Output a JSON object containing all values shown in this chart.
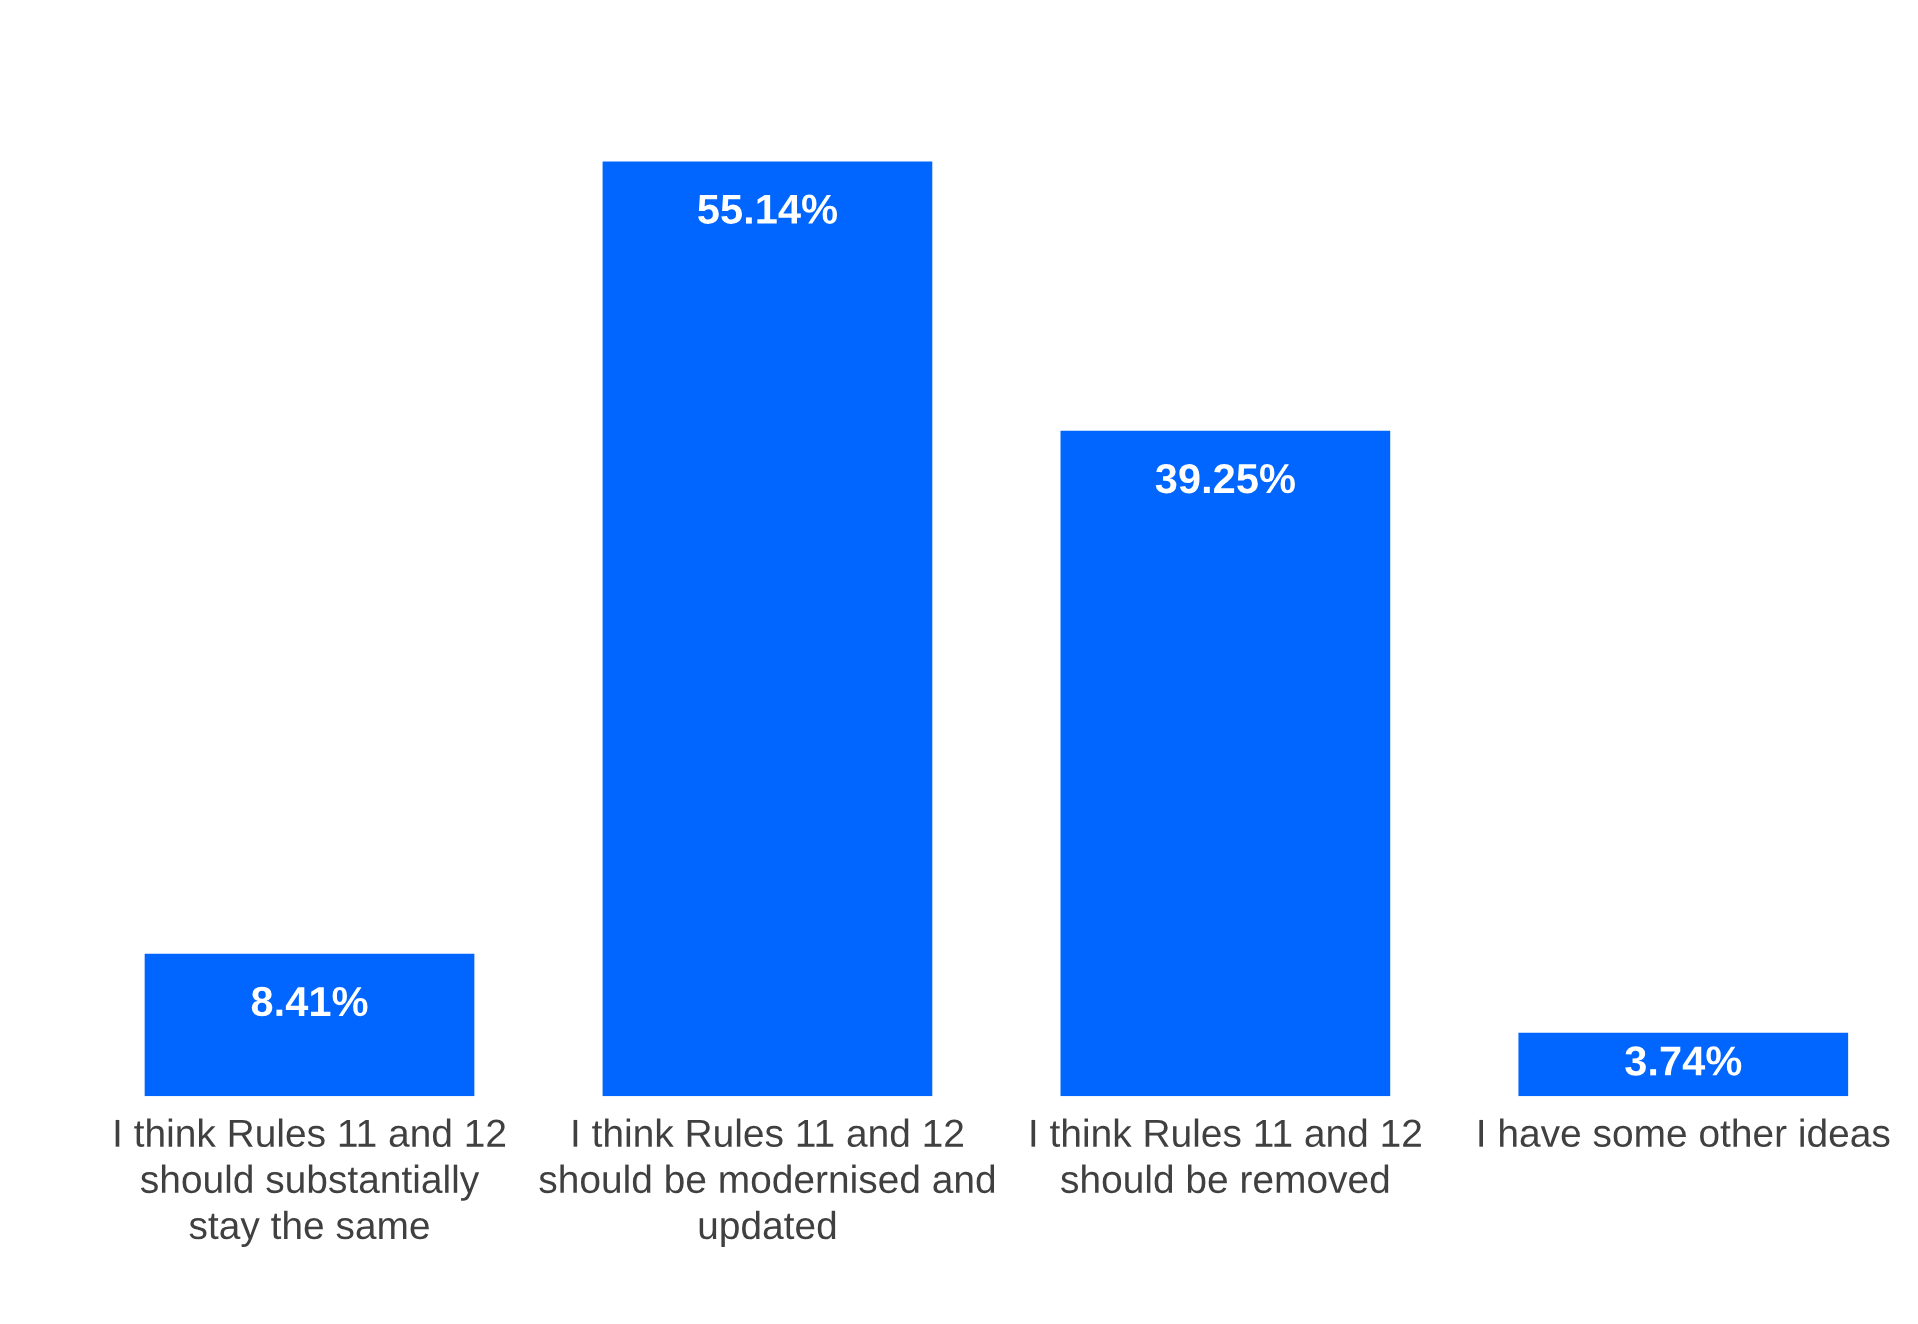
{
  "chart_data": {
    "type": "bar",
    "categories": [
      "I think Rules 11 and 12 should substantially stay the same",
      "I think Rules 11 and 12 should be modernised and updated",
      "I think Rules 11 and 12 should be removed",
      "I have some other ideas"
    ],
    "values": [
      8.41,
      55.14,
      39.25,
      3.74
    ],
    "value_labels": [
      "8.41%",
      "55.14%",
      "39.25%",
      "3.74%"
    ],
    "color": "#0066ff",
    "grid": false,
    "legend": false
  }
}
